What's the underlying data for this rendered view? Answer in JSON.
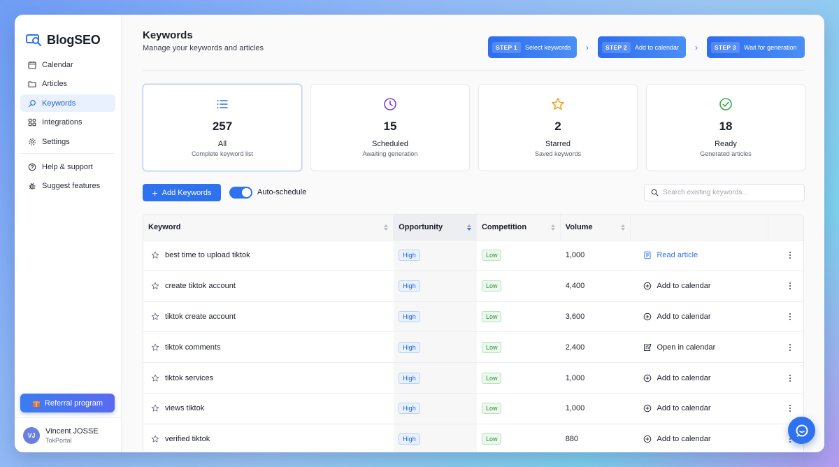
{
  "app": {
    "name": "BlogSEO"
  },
  "sidebar": {
    "items": [
      {
        "label": "Calendar",
        "icon": "calendar-icon",
        "active": false
      },
      {
        "label": "Articles",
        "icon": "folder-icon",
        "active": false
      },
      {
        "label": "Keywords",
        "icon": "search-icon",
        "active": true
      },
      {
        "label": "Integrations",
        "icon": "grid-icon",
        "active": false
      },
      {
        "label": "Settings",
        "icon": "gear-icon",
        "active": false
      }
    ],
    "secondary": [
      {
        "label": "Help & support",
        "icon": "help-icon"
      },
      {
        "label": "Suggest features",
        "icon": "bug-icon"
      }
    ],
    "referral_label": "Referral program",
    "user": {
      "initials": "VJ",
      "name": "Vincent JOSSE",
      "org": "TokPortal"
    }
  },
  "header": {
    "title": "Keywords",
    "subtitle": "Manage your keywords and articles",
    "steps": [
      {
        "tag": "STEP 1",
        "label": "Select keywords"
      },
      {
        "tag": "STEP 2",
        "label": "Add to calendar"
      },
      {
        "tag": "STEP 3",
        "label": "Wait for generation"
      }
    ]
  },
  "cards": [
    {
      "count": "257",
      "label": "All",
      "sub": "Complete keyword list",
      "icon": "list-icon",
      "color": "#2f72ef"
    },
    {
      "count": "15",
      "label": "Scheduled",
      "sub": "Awaiting generation",
      "icon": "clock-icon",
      "color": "#7a3fe0"
    },
    {
      "count": "2",
      "label": "Starred",
      "sub": "Saved keywords",
      "icon": "star-icon",
      "color": "#e8a21a"
    },
    {
      "count": "18",
      "label": "Ready",
      "sub": "Generated articles",
      "icon": "check-circle-icon",
      "color": "#3aa84a"
    }
  ],
  "toolbar": {
    "add_label": "Add Keywords",
    "autoschedule_label": "Auto-schedule",
    "autoschedule_on": true,
    "search_placeholder": "Search existing keywords..."
  },
  "table": {
    "columns": [
      "Keyword",
      "Opportunity",
      "Competition",
      "Volume"
    ],
    "rows": [
      {
        "keyword": "best time to upload tiktok",
        "opportunity": "High",
        "competition": "Low",
        "volume": "1,000",
        "action": "Read article",
        "action_icon": "article-icon"
      },
      {
        "keyword": "create tiktok account",
        "opportunity": "High",
        "competition": "Low",
        "volume": "4,400",
        "action": "Add to calendar",
        "action_icon": "plus-circle-icon"
      },
      {
        "keyword": "tiktok create account",
        "opportunity": "High",
        "competition": "Low",
        "volume": "3,600",
        "action": "Add to calendar",
        "action_icon": "plus-circle-icon"
      },
      {
        "keyword": "tiktok comments",
        "opportunity": "High",
        "competition": "Low",
        "volume": "2,400",
        "action": "Open in calendar",
        "action_icon": "edit-calendar-icon"
      },
      {
        "keyword": "tiktok services",
        "opportunity": "High",
        "competition": "Low",
        "volume": "1,000",
        "action": "Add to calendar",
        "action_icon": "plus-circle-icon"
      },
      {
        "keyword": "views tiktok",
        "opportunity": "High",
        "competition": "Low",
        "volume": "1,000",
        "action": "Add to calendar",
        "action_icon": "plus-circle-icon"
      },
      {
        "keyword": "verified tiktok",
        "opportunity": "High",
        "competition": "Low",
        "volume": "880",
        "action": "Add to calendar",
        "action_icon": "plus-circle-icon"
      }
    ]
  }
}
